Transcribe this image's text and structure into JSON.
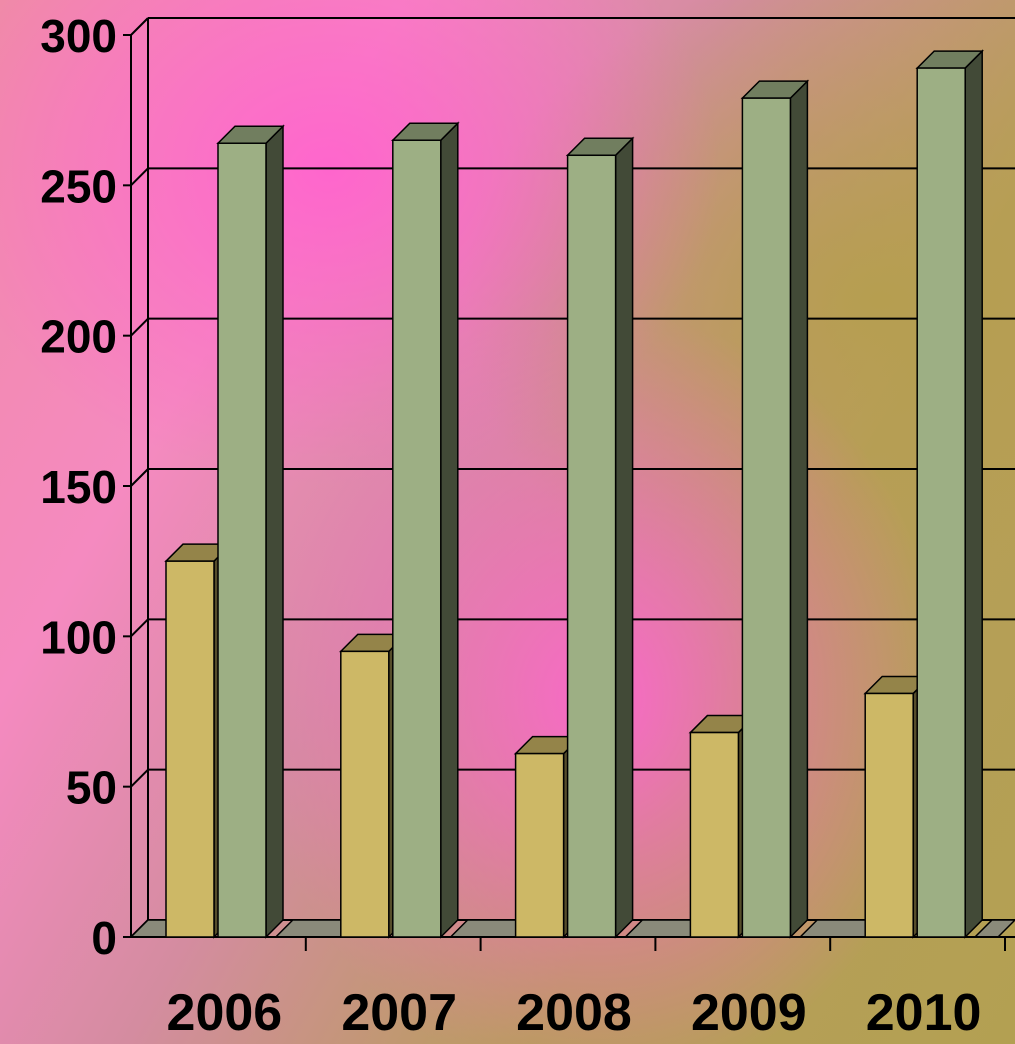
{
  "chart_data": {
    "type": "bar",
    "title": "",
    "xlabel": "",
    "ylabel": "",
    "categories": [
      "2006",
      "2007",
      "2008",
      "2009",
      "2010"
    ],
    "series": [
      {
        "values": [
          125,
          95,
          61,
          68,
          81
        ],
        "color": "#cdb866"
      },
      {
        "values": [
          264,
          265,
          260,
          279,
          289
        ],
        "color": "#9daf84"
      }
    ],
    "ylim": [
      0,
      300
    ],
    "yticks": [
      "0",
      "50",
      "100",
      "150",
      "200",
      "250",
      "300"
    ],
    "grid": true,
    "legend": "none",
    "style": "3d"
  }
}
